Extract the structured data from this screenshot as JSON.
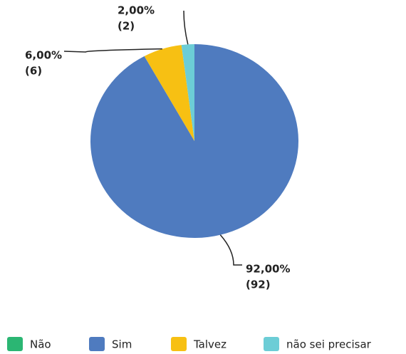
{
  "chart_data": {
    "type": "pie",
    "categories": [
      "Não",
      "Sim",
      "Talvez",
      "não sei precisar"
    ],
    "values": [
      0,
      92,
      6,
      2
    ],
    "value_labels": [
      null,
      "92,00%",
      "6,00%",
      "2,00%"
    ],
    "count_labels": [
      null,
      "(92)",
      "(6)",
      "(2)"
    ],
    "colors": [
      "#2bb673",
      "#4f7bbf",
      "#f7c013",
      "#6ccdd6"
    ],
    "legend": "bottom"
  }
}
